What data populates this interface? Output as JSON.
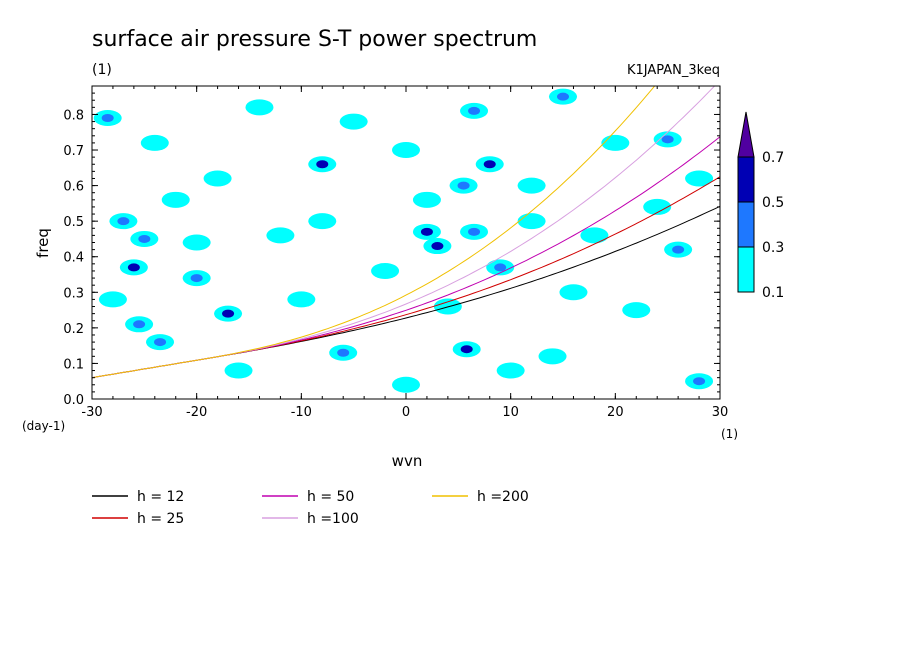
{
  "chart_data": {
    "type": "heatmap",
    "title": "surface air pressure S-T power spectrum",
    "subtitle_left": "(1)",
    "subtitle_right": "K1JAPAN_3keq",
    "xlabel": "wvn",
    "ylabel": "freq",
    "x_unit_label": "(1)",
    "y_unit_label": "(day-1)",
    "xlim": [
      -30,
      30
    ],
    "ylim": [
      0,
      0.88
    ],
    "x_ticks": [
      -30,
      -20,
      -10,
      0,
      10,
      20,
      30
    ],
    "x_tick_labels": [
      "-30",
      "-20",
      "-10",
      "0",
      "10",
      "20",
      "30"
    ],
    "y_ticks": [
      0,
      0.1,
      0.2,
      0.3,
      0.4,
      0.5,
      0.6,
      0.7,
      0.8
    ],
    "y_tick_labels": [
      "0.0",
      "0.1",
      "0.2",
      "0.3",
      "0.4",
      "0.5",
      "0.6",
      "0.7",
      "0.8"
    ],
    "colorbar": {
      "levels": [
        0.1,
        0.3,
        0.5,
        0.7
      ],
      "labels": [
        "0.1",
        "0.3",
        "0.5",
        "0.7"
      ],
      "colors": [
        "#00ffff",
        "#1e78ff",
        "#0000b4",
        "#5000a0"
      ]
    },
    "patches": [
      {
        "x": -28.5,
        "y": 0.79,
        "v": 0.3
      },
      {
        "x": -27,
        "y": 0.5,
        "v": 0.3
      },
      {
        "x": -25,
        "y": 0.45,
        "v": 0.3
      },
      {
        "x": -26,
        "y": 0.37,
        "v": 0.5
      },
      {
        "x": -25.5,
        "y": 0.21,
        "v": 0.3
      },
      {
        "x": -23.5,
        "y": 0.16,
        "v": 0.3
      },
      {
        "x": -20,
        "y": 0.34,
        "v": 0.3
      },
      {
        "x": -17,
        "y": 0.24,
        "v": 0.5
      },
      {
        "x": -8,
        "y": 0.66,
        "v": 0.5
      },
      {
        "x": -6,
        "y": 0.13,
        "v": 0.3
      },
      {
        "x": 2,
        "y": 0.47,
        "v": 0.5
      },
      {
        "x": 3,
        "y": 0.43,
        "v": 0.5
      },
      {
        "x": 5.5,
        "y": 0.6,
        "v": 0.3
      },
      {
        "x": 5.8,
        "y": 0.14,
        "v": 0.5
      },
      {
        "x": 8,
        "y": 0.66,
        "v": 0.5
      },
      {
        "x": 6.5,
        "y": 0.81,
        "v": 0.3
      },
      {
        "x": 6.5,
        "y": 0.47,
        "v": 0.3
      },
      {
        "x": 9,
        "y": 0.37,
        "v": 0.3
      },
      {
        "x": 15,
        "y": 0.85,
        "v": 0.3
      },
      {
        "x": 25,
        "y": 0.73,
        "v": 0.3
      },
      {
        "x": 28,
        "y": 0.05,
        "v": 0.3
      },
      {
        "x": 26,
        "y": 0.42,
        "v": 0.3
      },
      {
        "x": -18,
        "y": 0.62,
        "v": 0.1
      },
      {
        "x": -22,
        "y": 0.56,
        "v": 0.1
      },
      {
        "x": -12,
        "y": 0.46,
        "v": 0.1
      },
      {
        "x": -5,
        "y": 0.78,
        "v": 0.1
      },
      {
        "x": 12,
        "y": 0.6,
        "v": 0.1
      },
      {
        "x": 18,
        "y": 0.46,
        "v": 0.1
      },
      {
        "x": 22,
        "y": 0.25,
        "v": 0.1
      },
      {
        "x": -10,
        "y": 0.28,
        "v": 0.1
      },
      {
        "x": 0,
        "y": 0.7,
        "v": 0.1
      },
      {
        "x": -2,
        "y": 0.36,
        "v": 0.1
      },
      {
        "x": 14,
        "y": 0.12,
        "v": 0.1
      },
      {
        "x": 20,
        "y": 0.72,
        "v": 0.1
      },
      {
        "x": -28,
        "y": 0.28,
        "v": 0.1
      },
      {
        "x": -14,
        "y": 0.82,
        "v": 0.1
      },
      {
        "x": 24,
        "y": 0.54,
        "v": 0.1
      },
      {
        "x": 10,
        "y": 0.08,
        "v": 0.1
      },
      {
        "x": -8,
        "y": 0.5,
        "v": 0.1
      },
      {
        "x": 16,
        "y": 0.3,
        "v": 0.1
      },
      {
        "x": -20,
        "y": 0.44,
        "v": 0.1
      },
      {
        "x": 4,
        "y": 0.26,
        "v": 0.1
      },
      {
        "x": -24,
        "y": 0.72,
        "v": 0.1
      },
      {
        "x": 28,
        "y": 0.62,
        "v": 0.1
      },
      {
        "x": 0,
        "y": 0.04,
        "v": 0.1
      },
      {
        "x": -16,
        "y": 0.08,
        "v": 0.1
      },
      {
        "x": 12,
        "y": 0.5,
        "v": 0.1
      },
      {
        "x": 2,
        "y": 0.56,
        "v": 0.1
      }
    ],
    "series": [
      {
        "name": "h = 12",
        "h": 12,
        "color": "#000000"
      },
      {
        "name": "h = 25",
        "h": 25,
        "color": "#d00000"
      },
      {
        "name": "h = 50",
        "h": 50,
        "color": "#c000b0"
      },
      {
        "name": "h =100",
        "h": 100,
        "color": "#d8a0e0"
      },
      {
        "name": "h =200",
        "h": 200,
        "color": "#f0c000"
      }
    ],
    "legend_placement": "bottom"
  }
}
